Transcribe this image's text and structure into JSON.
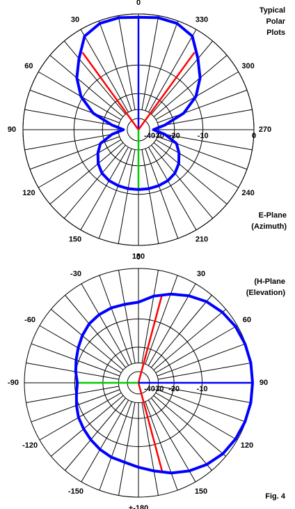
{
  "figure_label": "Fig. 4",
  "chart_data": [
    {
      "type": "polar",
      "title": [
        "Typical",
        "Polar",
        "Plots"
      ],
      "subtitle": [
        "E-Plane",
        "(Azimuth)"
      ],
      "direction": "counterclockwise",
      "rscale": "arrl-log",
      "rmax": 0,
      "spoke_step": 10,
      "angle_ticks": [
        0,
        30,
        60,
        90,
        120,
        150,
        180,
        210,
        240,
        270,
        300,
        330
      ],
      "rticks": [
        -40,
        -30,
        -20,
        -10,
        0
      ],
      "x": [
        0,
        10,
        20,
        30,
        40,
        50,
        60,
        70,
        80,
        90,
        100,
        110,
        120,
        130,
        140,
        150,
        160,
        170,
        180,
        190,
        200,
        210,
        220,
        230,
        240,
        250,
        260,
        270,
        280,
        290,
        300,
        310,
        320,
        330,
        340,
        350
      ],
      "series": [
        {
          "color": "#0000ff",
          "values": [
            -0.5,
            -0.3,
            -0.4,
            -1.2,
            -3.8,
            -6.2,
            -9.5,
            -15,
            -25,
            -35,
            -25,
            -18,
            -15.5,
            -13.5,
            -12.2,
            -11.6,
            -11.4,
            -11.3,
            -11.3,
            -11.3,
            -11.4,
            -11.6,
            -12.2,
            -13.5,
            -15.5,
            -18,
            -25,
            -35,
            -25,
            -15,
            -9.5,
            -6.2,
            -3.8,
            -1.2,
            -0.4,
            -0.3
          ]
        }
      ],
      "reference_lines": [
        {
          "angle": 0,
          "value": -0.5,
          "color": "#0000ff"
        },
        {
          "angle": 36,
          "value": -3.3,
          "color": "#ff0000"
        },
        {
          "angle": 324,
          "value": -3.3,
          "color": "#ff0000"
        },
        {
          "angle": 180,
          "value": -11.3,
          "color": "#00cc00"
        }
      ]
    },
    {
      "type": "polar",
      "title": [
        "(H-Plane",
        "(Elevation)"
      ],
      "direction": "clockwise",
      "rscale": "arrl-log",
      "rmax": 0,
      "spoke_step": 10,
      "angle_ticks": [
        0,
        30,
        60,
        90,
        120,
        150,
        {
          "value": 180,
          "label": "+-180"
        },
        -150,
        -120,
        -90,
        -60,
        -30
      ],
      "rticks": [
        -40,
        -30,
        -20,
        -10
      ],
      "x": [
        -180,
        -170,
        -160,
        -150,
        -140,
        -130,
        -120,
        -110,
        -100,
        -90,
        -80,
        -70,
        -60,
        -50,
        -40,
        -30,
        -20,
        -10,
        0,
        10,
        20,
        30,
        40,
        50,
        60,
        70,
        80,
        90,
        100,
        110,
        120,
        130,
        140,
        150,
        160,
        170
      ],
      "series": [
        {
          "color": "#0000ff",
          "values": [
            -5.2,
            -6,
            -6.3,
            -6.8,
            -7.4,
            -8,
            -8.6,
            -9.4,
            -10.2,
            -10.7,
            -10,
            -9.3,
            -8.5,
            -7.6,
            -6.8,
            -6.4,
            -6.2,
            -6.2,
            -6,
            -4.5,
            -3.3,
            -2.2,
            -1.3,
            -0.7,
            -0.3,
            -0.1,
            0,
            0,
            0,
            -0.1,
            -0.3,
            -0.6,
            -1.2,
            -2,
            -3,
            -4.2
          ]
        }
      ],
      "reference_lines": [
        {
          "angle": 15,
          "value": -3.8,
          "color": "#ff0000"
        },
        {
          "angle": 165,
          "value": -3.8,
          "color": "#ff0000"
        },
        {
          "angle": 90,
          "value": 0,
          "color": "#0000ff"
        },
        {
          "angle": -90,
          "value": -10.7,
          "color": "#00cc00"
        }
      ]
    }
  ]
}
